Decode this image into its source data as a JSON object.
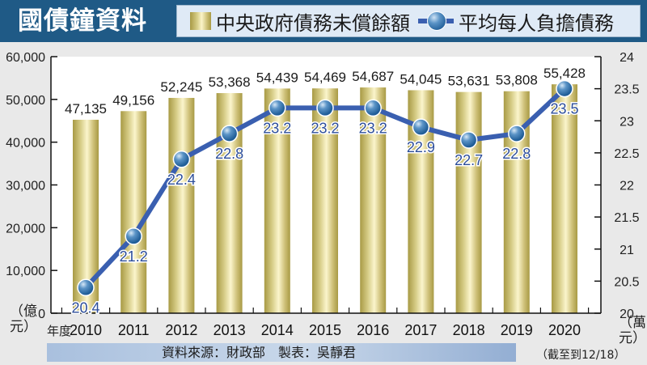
{
  "header": {
    "title": "國債鐘資料",
    "legend": {
      "bar_label": "中央政府債務未償餘額",
      "line_label": "平均每人負擔債務"
    }
  },
  "axes": {
    "left_unit": "（億元）",
    "right_unit": "（萬元）",
    "year_prefix": "年度",
    "note": "（截至到12/18）"
  },
  "footer": {
    "source": "資料來源：財政部　製表：吳靜君"
  },
  "colors": {
    "header_bg": "#1f5a86",
    "bar_gold": "#cfc27a",
    "line_blue": "#3a5fb0",
    "marker_blue": "#2f6fa8",
    "label_blue": "#2d4e9a"
  },
  "chart_data": {
    "type": "bar+line",
    "title": "國債鐘資料",
    "categories": [
      "2010",
      "2011",
      "2012",
      "2013",
      "2014",
      "2015",
      "2016",
      "2017",
      "2018",
      "2019",
      "2020"
    ],
    "series": [
      {
        "name": "中央政府債務未償餘額",
        "type": "bar",
        "axis": "left",
        "unit": "億元",
        "values": [
          47135,
          49156,
          52245,
          53368,
          54439,
          54469,
          54687,
          54045,
          53631,
          53808,
          55428
        ],
        "labels": [
          "47,135",
          "49,156",
          "52,245",
          "53,368",
          "54,439",
          "54,469",
          "54,687",
          "54,045",
          "53,631",
          "53,808",
          "55,428"
        ]
      },
      {
        "name": "平均每人負擔債務",
        "type": "line",
        "axis": "right",
        "unit": "萬元",
        "values": [
          20.4,
          21.2,
          22.4,
          22.8,
          23.2,
          23.2,
          23.2,
          22.9,
          22.7,
          22.8,
          23.5
        ],
        "labels": [
          "20.4",
          "21.2",
          "22.4",
          "22.8",
          "23.2",
          "23.2",
          "23.2",
          "22.9",
          "22.7",
          "22.8",
          "23.5"
        ]
      }
    ],
    "xlabel": "年度",
    "ylabel_left": "億元",
    "ylabel_right": "萬元",
    "ylim_left": [
      0,
      60000
    ],
    "yticks_left": [
      "0",
      "10,000",
      "20,000",
      "30,000",
      "40,000",
      "50,000",
      "60,000"
    ],
    "ylim_right": [
      20,
      24
    ],
    "yticks_right": [
      "20",
      "20.5",
      "21",
      "21.5",
      "22",
      "22.5",
      "23",
      "23.5",
      "24"
    ],
    "grid": false,
    "legend_position": "top",
    "annotation": "（截至到12/18）",
    "source": "資料來源：財政部　製表：吳靜君"
  }
}
